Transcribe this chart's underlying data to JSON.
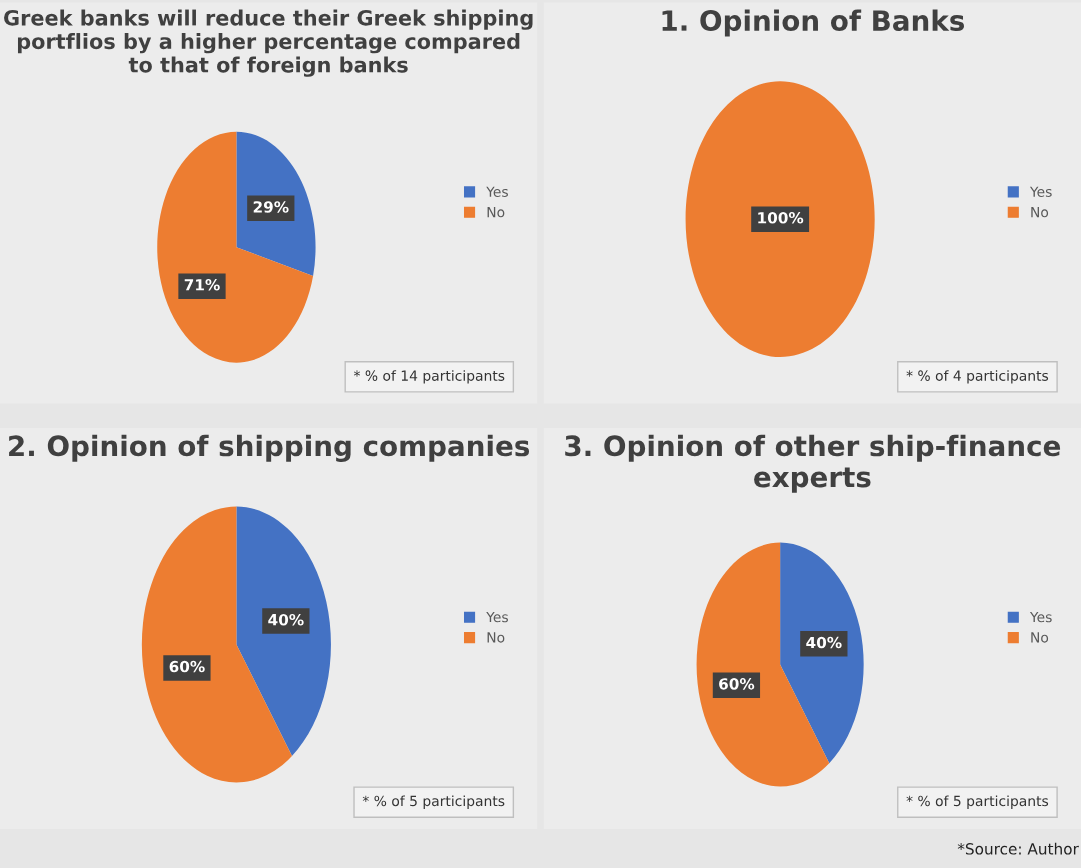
{
  "chart_data": [
    {
      "type": "pie",
      "title": "Greek banks will reduce their Greek shipping portflios by a higher percentage compared to that of foreign banks",
      "categories": [
        "Yes",
        "No"
      ],
      "values": [
        29,
        71
      ],
      "colors": [
        "#4472c4",
        "#ed7d31"
      ],
      "value_labels": [
        "29%",
        "71%"
      ],
      "legend": "right",
      "annotations": [
        "* % of 14 participants"
      ]
    },
    {
      "type": "pie",
      "title": "1. Opinion of Banks",
      "categories": [
        "Yes",
        "No"
      ],
      "values": [
        0,
        100
      ],
      "colors": [
        "#4472c4",
        "#ed7d31"
      ],
      "value_labels": [
        null,
        "100%"
      ],
      "legend": "right",
      "annotations": [
        "* % of 4 participants"
      ]
    },
    {
      "type": "pie",
      "title": "2. Opinion of shipping companies",
      "categories": [
        "Yes",
        "No"
      ],
      "values": [
        40,
        60
      ],
      "colors": [
        "#4472c4",
        "#ed7d31"
      ],
      "value_labels": [
        "40%",
        "60%"
      ],
      "legend": "right",
      "annotations": [
        "* % of 5 participants"
      ]
    },
    {
      "type": "pie",
      "title": "3. Opinion of other ship-finance experts",
      "categories": [
        "Yes",
        "No"
      ],
      "values": [
        40,
        60
      ],
      "colors": [
        "#4472c4",
        "#ed7d31"
      ],
      "value_labels": [
        "40%",
        "60%"
      ],
      "legend": "right",
      "annotations": [
        "* % of 5 participants",
        "*Source: Author"
      ]
    }
  ]
}
